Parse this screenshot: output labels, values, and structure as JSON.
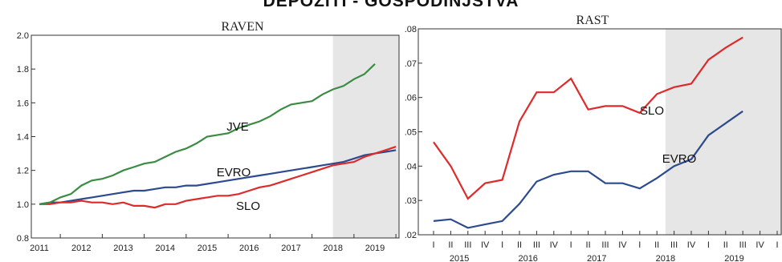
{
  "title": "DEPOZITI - GOSPODINJSTVA",
  "colors": {
    "green": "#3a8c42",
    "blue": "#2c4a8e",
    "red": "#dd2b2b",
    "shade": "#e6e6e6"
  },
  "chart_data": [
    {
      "type": "line",
      "title": "RAVEN",
      "x_tick_labels": [
        "2011",
        "2012",
        "2013",
        "2014",
        "2015",
        "2016",
        "2017",
        "2018",
        "2019"
      ],
      "x_range": [
        2010.75,
        2019.5
      ],
      "y_tick_labels": [
        "0.8",
        "1.0",
        "1.2",
        "1.4",
        "1.6",
        "1.8",
        "2.0"
      ],
      "ylim": [
        0.8,
        2.0
      ],
      "shaded_region": [
        2018.0,
        2019.5
      ],
      "grid": false,
      "series": [
        {
          "name": "JVE",
          "color": "green",
          "x": [
            2011.0,
            2011.25,
            2011.5,
            2011.75,
            2012.0,
            2012.25,
            2012.5,
            2012.75,
            2013.0,
            2013.25,
            2013.5,
            2013.75,
            2014.0,
            2014.25,
            2014.5,
            2014.75,
            2015.0,
            2015.25,
            2015.5,
            2015.75,
            2016.0,
            2016.25,
            2016.5,
            2016.75,
            2017.0,
            2017.25,
            2017.5,
            2017.75,
            2018.0,
            2018.25,
            2018.5,
            2018.75,
            2019.0
          ],
          "values": [
            1.0,
            1.01,
            1.04,
            1.06,
            1.11,
            1.14,
            1.15,
            1.17,
            1.2,
            1.22,
            1.24,
            1.25,
            1.28,
            1.31,
            1.33,
            1.36,
            1.4,
            1.41,
            1.42,
            1.45,
            1.47,
            1.49,
            1.52,
            1.56,
            1.59,
            1.6,
            1.61,
            1.65,
            1.68,
            1.7,
            1.74,
            1.77,
            1.83
          ]
        },
        {
          "name": "EVRO",
          "color": "blue",
          "x": [
            2011.0,
            2011.25,
            2011.5,
            2011.75,
            2012.0,
            2012.25,
            2012.5,
            2012.75,
            2013.0,
            2013.25,
            2013.5,
            2013.75,
            2014.0,
            2014.25,
            2014.5,
            2014.75,
            2015.0,
            2015.25,
            2015.5,
            2015.75,
            2016.0,
            2016.25,
            2016.5,
            2016.75,
            2017.0,
            2017.25,
            2017.5,
            2017.75,
            2018.0,
            2018.25,
            2018.5,
            2018.75,
            2019.0,
            2019.25,
            2019.5
          ],
          "values": [
            1.0,
            1.01,
            1.01,
            1.02,
            1.03,
            1.04,
            1.05,
            1.06,
            1.07,
            1.08,
            1.08,
            1.09,
            1.1,
            1.1,
            1.11,
            1.11,
            1.12,
            1.13,
            1.14,
            1.15,
            1.16,
            1.17,
            1.18,
            1.19,
            1.2,
            1.21,
            1.22,
            1.23,
            1.24,
            1.25,
            1.27,
            1.29,
            1.3,
            1.31,
            1.32
          ]
        },
        {
          "name": "SLO",
          "color": "red",
          "x": [
            2011.0,
            2011.25,
            2011.5,
            2011.75,
            2012.0,
            2012.25,
            2012.5,
            2012.75,
            2013.0,
            2013.25,
            2013.5,
            2013.75,
            2014.0,
            2014.25,
            2014.5,
            2014.75,
            2015.0,
            2015.25,
            2015.5,
            2015.75,
            2016.0,
            2016.25,
            2016.5,
            2016.75,
            2017.0,
            2017.25,
            2017.5,
            2017.75,
            2018.0,
            2018.25,
            2018.5,
            2018.75,
            2019.0,
            2019.25,
            2019.5
          ],
          "values": [
            1.0,
            1.0,
            1.01,
            1.01,
            1.02,
            1.01,
            1.01,
            1.0,
            1.01,
            0.99,
            0.99,
            0.98,
            1.0,
            1.0,
            1.02,
            1.03,
            1.04,
            1.05,
            1.05,
            1.06,
            1.08,
            1.1,
            1.11,
            1.13,
            1.15,
            1.17,
            1.19,
            1.21,
            1.23,
            1.24,
            1.25,
            1.28,
            1.3,
            1.32,
            1.34
          ]
        }
      ]
    },
    {
      "type": "line",
      "title": "RAST",
      "quarter_labels": [
        "I",
        "II",
        "III",
        "IV",
        "I",
        "II",
        "III",
        "IV",
        "I",
        "II",
        "III",
        "IV",
        "I",
        "II",
        "III",
        "IV",
        "I",
        "II",
        "III",
        "IV",
        "I",
        "II"
      ],
      "year_labels": [
        {
          "label": "2015",
          "quarter_index": 1.5
        },
        {
          "label": "2016",
          "quarter_index": 5.5
        },
        {
          "label": "2017",
          "quarter_index": 9.5
        },
        {
          "label": "2018",
          "quarter_index": 13.5
        },
        {
          "label": "2019",
          "quarter_index": 17.5
        }
      ],
      "y_tick_labels": [
        ".02",
        ".03",
        ".04",
        ".05",
        ".06",
        ".07",
        ".08"
      ],
      "ylim": [
        0.02,
        0.08
      ],
      "shaded_from_quarter_index": 14,
      "grid": false,
      "series": [
        {
          "name": "SLO",
          "color": "red",
          "values": [
            0.047,
            0.04,
            0.0305,
            0.035,
            0.036,
            0.053,
            0.0615,
            0.0615,
            0.0655,
            0.0565,
            0.0575,
            0.0575,
            0.0555,
            0.061,
            0.063,
            0.064,
            0.071,
            0.0745,
            0.0775
          ]
        },
        {
          "name": "EVRO",
          "color": "blue",
          "values": [
            0.024,
            0.0245,
            0.022,
            0.023,
            0.024,
            0.029,
            0.0355,
            0.0375,
            0.0385,
            0.0385,
            0.035,
            0.035,
            0.0335,
            0.0365,
            0.04,
            0.042,
            0.049,
            0.0525,
            0.056
          ]
        }
      ]
    }
  ]
}
